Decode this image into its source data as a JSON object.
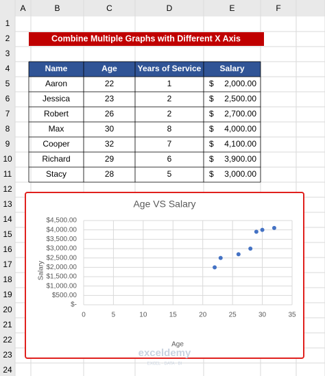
{
  "sheet": {
    "columns": [
      "A",
      "B",
      "C",
      "D",
      "E",
      "F"
    ],
    "rows": [
      1,
      2,
      3,
      4,
      5,
      6,
      7,
      8,
      9,
      10,
      11,
      12,
      13,
      14,
      15,
      16,
      17,
      18,
      19,
      20,
      21,
      22,
      23,
      24
    ]
  },
  "banner": "Combine Multiple Graphs with Different X Axis",
  "table": {
    "header": [
      "Name",
      "Age",
      "Years of Service",
      "Salary"
    ],
    "currency": "$",
    "rows": [
      [
        "Aaron",
        "22",
        "1",
        "2,000.00"
      ],
      [
        "Jessica",
        "23",
        "2",
        "2,500.00"
      ],
      [
        "Robert",
        "26",
        "2",
        "2,700.00"
      ],
      [
        "Max",
        "30",
        "8",
        "4,000.00"
      ],
      [
        "Cooper",
        "32",
        "7",
        "4,100.00"
      ],
      [
        "Richard",
        "29",
        "6",
        "3,900.00"
      ],
      [
        "Stacy",
        "28",
        "5",
        "3,000.00"
      ]
    ]
  },
  "chart_data": {
    "type": "scatter",
    "title": "Age VS Salary",
    "x_label": "Age",
    "y_label": "Salary",
    "x": [
      22,
      23,
      26,
      30,
      32,
      29,
      28
    ],
    "values": [
      2000,
      2500,
      2700,
      4000,
      4100,
      3900,
      3000
    ],
    "color": "#4472c4",
    "xlim": [
      0,
      35
    ],
    "xticks": [
      0,
      5,
      10,
      15,
      20,
      25,
      30,
      35
    ],
    "ylim": [
      0,
      4500
    ],
    "yticks": [
      {
        "value": 0,
        "label": "$-"
      },
      {
        "value": 500,
        "label": "$500.00"
      },
      {
        "value": 1000,
        "label": "$1,000.00"
      },
      {
        "value": 1500,
        "label": "$1,500.00"
      },
      {
        "value": 2000,
        "label": "$2,000.00"
      },
      {
        "value": 2500,
        "label": "$2,500.00"
      },
      {
        "value": 3000,
        "label": "$3,000.00"
      },
      {
        "value": 3500,
        "label": "$3,500.00"
      },
      {
        "value": 4000,
        "label": "$4,000.00"
      },
      {
        "value": 4500,
        "label": "$4,500.00"
      }
    ],
    "grid": true
  },
  "watermark": {
    "name": "exceldemy",
    "tagline": "EXCEL · DATA · BI"
  }
}
